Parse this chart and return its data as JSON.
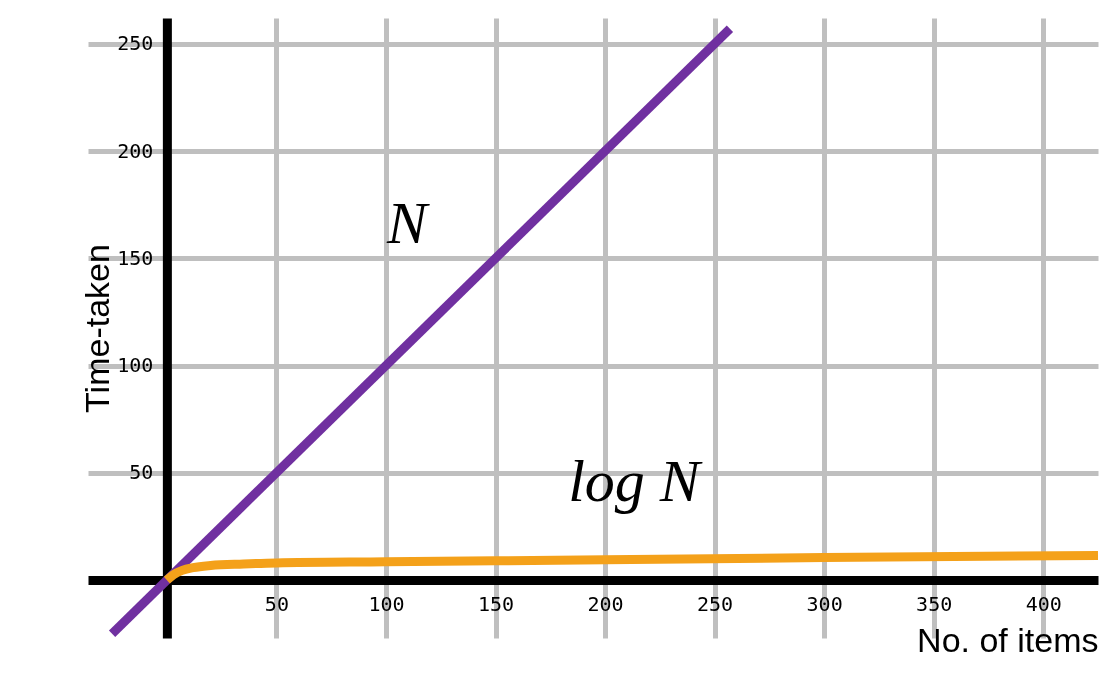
{
  "chart_data": {
    "type": "line",
    "xlabel": "No. of items",
    "ylabel": "Time-taken",
    "xlim": [
      -36,
      425
    ],
    "ylim": [
      -27,
      262
    ],
    "xticks": [
      50,
      100,
      150,
      200,
      250,
      300,
      350,
      400
    ],
    "yticks": [
      50,
      100,
      150,
      200,
      250
    ],
    "grid": true,
    "line_style": "solid",
    "series": [
      {
        "name": "N",
        "color": "#7030a0",
        "x": [
          -25,
          257
        ],
        "values": [
          -25,
          257
        ]
      },
      {
        "name": "log N",
        "color": "#f4a11a",
        "x": [
          0,
          3,
          7,
          12,
          20,
          35,
          50,
          100,
          200,
          300,
          425
        ],
        "values": [
          0,
          2.5,
          4.5,
          5.8,
          6.8,
          7.5,
          8,
          8.5,
          9.5,
          10.5,
          11.5
        ]
      }
    ]
  }
}
